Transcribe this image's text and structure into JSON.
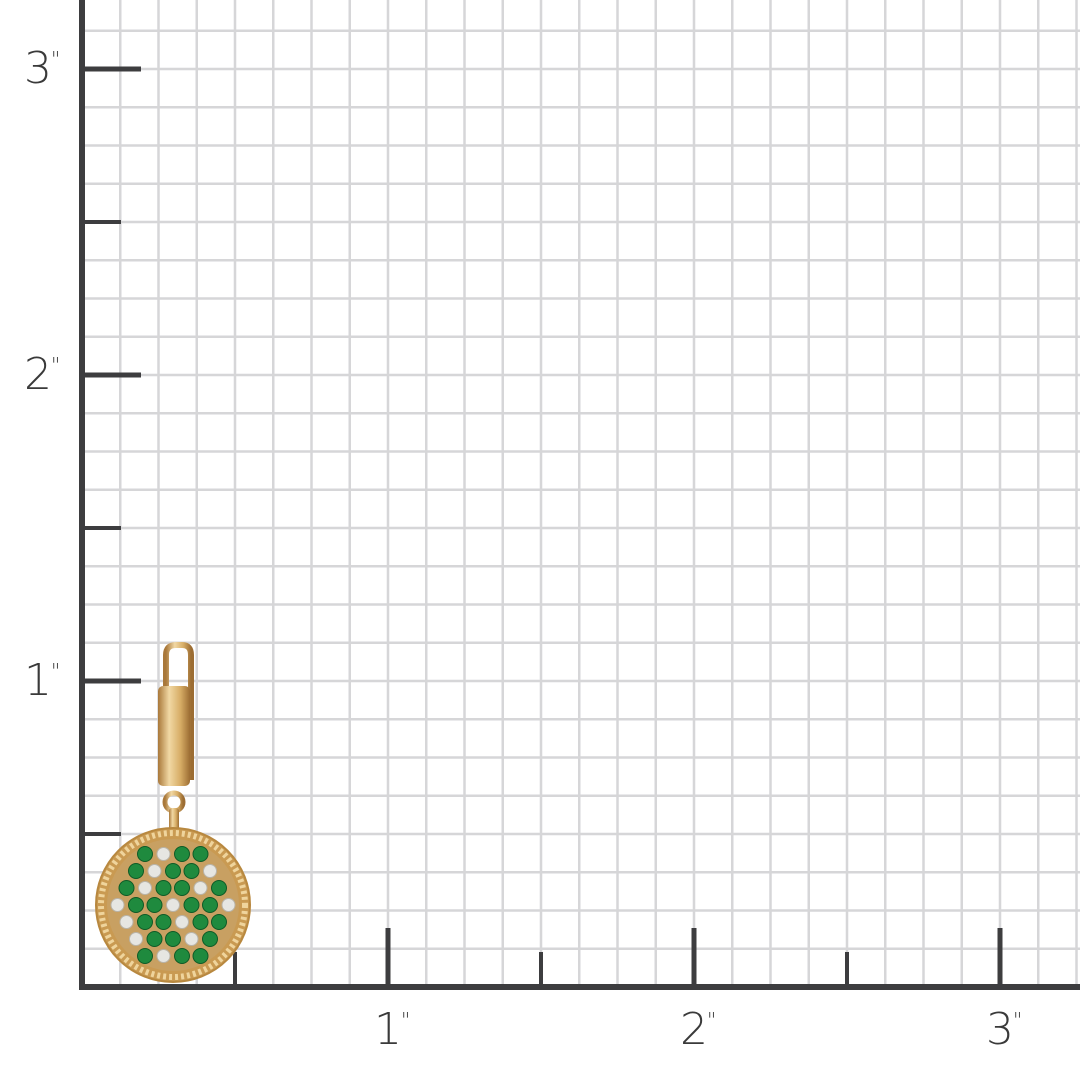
{
  "scale": {
    "unit_mark": "\"",
    "x_labels": [
      "1",
      "2",
      "3"
    ],
    "y_labels": [
      "1",
      "2",
      "3"
    ],
    "subdivisions_per_inch": 8
  },
  "colors": {
    "axis": "#3d3d3f",
    "grid": "#d6d6d8",
    "gold": "#d9b06a",
    "emerald": "#1f8a3e",
    "diamond": "#e6e6e2"
  },
  "product": {
    "type": "earring-huggie-with-pave-disc",
    "stones": [
      "emerald",
      "diamond"
    ]
  }
}
